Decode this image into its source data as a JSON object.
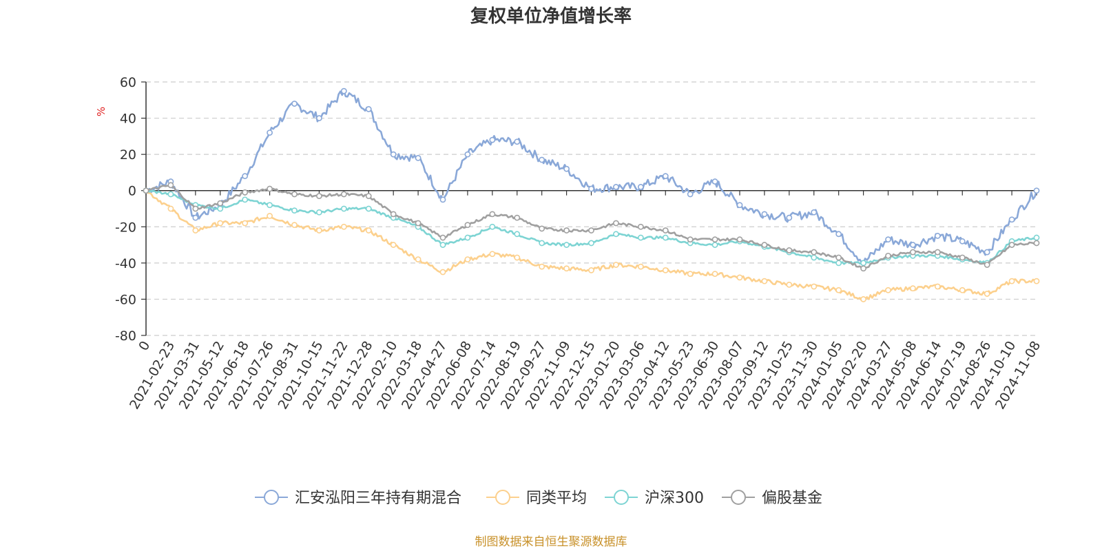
{
  "chart_data": {
    "type": "line",
    "title": "复权单位净值增长率",
    "ylabel": "%",
    "ylim": [
      -80,
      60
    ],
    "yticks": [
      -80,
      -60,
      -40,
      -20,
      0,
      20,
      40,
      60
    ],
    "grid": true,
    "legend_position": "bottom",
    "x": [
      "0",
      "2021-02-23",
      "2021-03-31",
      "2021-05-12",
      "2021-06-18",
      "2021-07-26",
      "2021-08-31",
      "2021-10-15",
      "2021-11-22",
      "2021-12-28",
      "2022-02-10",
      "2022-03-18",
      "2022-04-27",
      "2022-06-08",
      "2022-07-14",
      "2022-08-19",
      "2022-09-27",
      "2022-11-09",
      "2022-12-15",
      "2023-01-20",
      "2023-03-06",
      "2023-04-12",
      "2023-05-23",
      "2023-06-30",
      "2023-08-07",
      "2023-09-12",
      "2023-10-25",
      "2023-11-30",
      "2024-01-05",
      "2024-02-20",
      "2024-03-27",
      "2024-05-08",
      "2024-06-14",
      "2024-07-19",
      "2024-08-26",
      "2024-10-10",
      "2024-11-08"
    ],
    "series": [
      {
        "name": "汇安泓阳三年持有期混合",
        "color": "#8aa8d8",
        "values": [
          0,
          5,
          -15,
          -8,
          8,
          32,
          48,
          40,
          55,
          45,
          20,
          18,
          -5,
          20,
          28,
          27,
          17,
          12,
          1,
          2,
          2,
          8,
          -2,
          5,
          -8,
          -13,
          -15,
          -12,
          -24,
          -40,
          -27,
          -30,
          -25,
          -28,
          -34,
          -16,
          0
        ]
      },
      {
        "name": "同类平均",
        "color": "#fcd08d",
        "values": [
          0,
          -10,
          -22,
          -18,
          -18,
          -14,
          -19,
          -22,
          -20,
          -22,
          -30,
          -38,
          -45,
          -38,
          -35,
          -37,
          -42,
          -43,
          -44,
          -41,
          -42,
          -44,
          -46,
          -46,
          -48,
          -50,
          -52,
          -53,
          -55,
          -60,
          -55,
          -54,
          -53,
          -55,
          -57,
          -50,
          -50
        ]
      },
      {
        "name": "沪深300",
        "color": "#7dd4d3",
        "values": [
          0,
          -2,
          -8,
          -10,
          -5,
          -8,
          -11,
          -12,
          -10,
          -10,
          -15,
          -20,
          -30,
          -26,
          -20,
          -24,
          -29,
          -30,
          -29,
          -24,
          -26,
          -26,
          -29,
          -30,
          -28,
          -31,
          -34,
          -37,
          -40,
          -40,
          -37,
          -36,
          -36,
          -38,
          -40,
          -28,
          -26
        ]
      },
      {
        "name": "偏股基金",
        "color": "#a0a0a0",
        "values": [
          0,
          3,
          -10,
          -7,
          -1,
          1,
          -2,
          -3,
          -2,
          -3,
          -13,
          -18,
          -26,
          -19,
          -13,
          -15,
          -21,
          -22,
          -22,
          -18,
          -20,
          -22,
          -27,
          -27,
          -27,
          -30,
          -33,
          -34,
          -37,
          -43,
          -36,
          -34,
          -34,
          -37,
          -41,
          -30,
          -29
        ]
      }
    ]
  },
  "footer": {
    "source": "制图数据来自恒生聚源数据库"
  }
}
